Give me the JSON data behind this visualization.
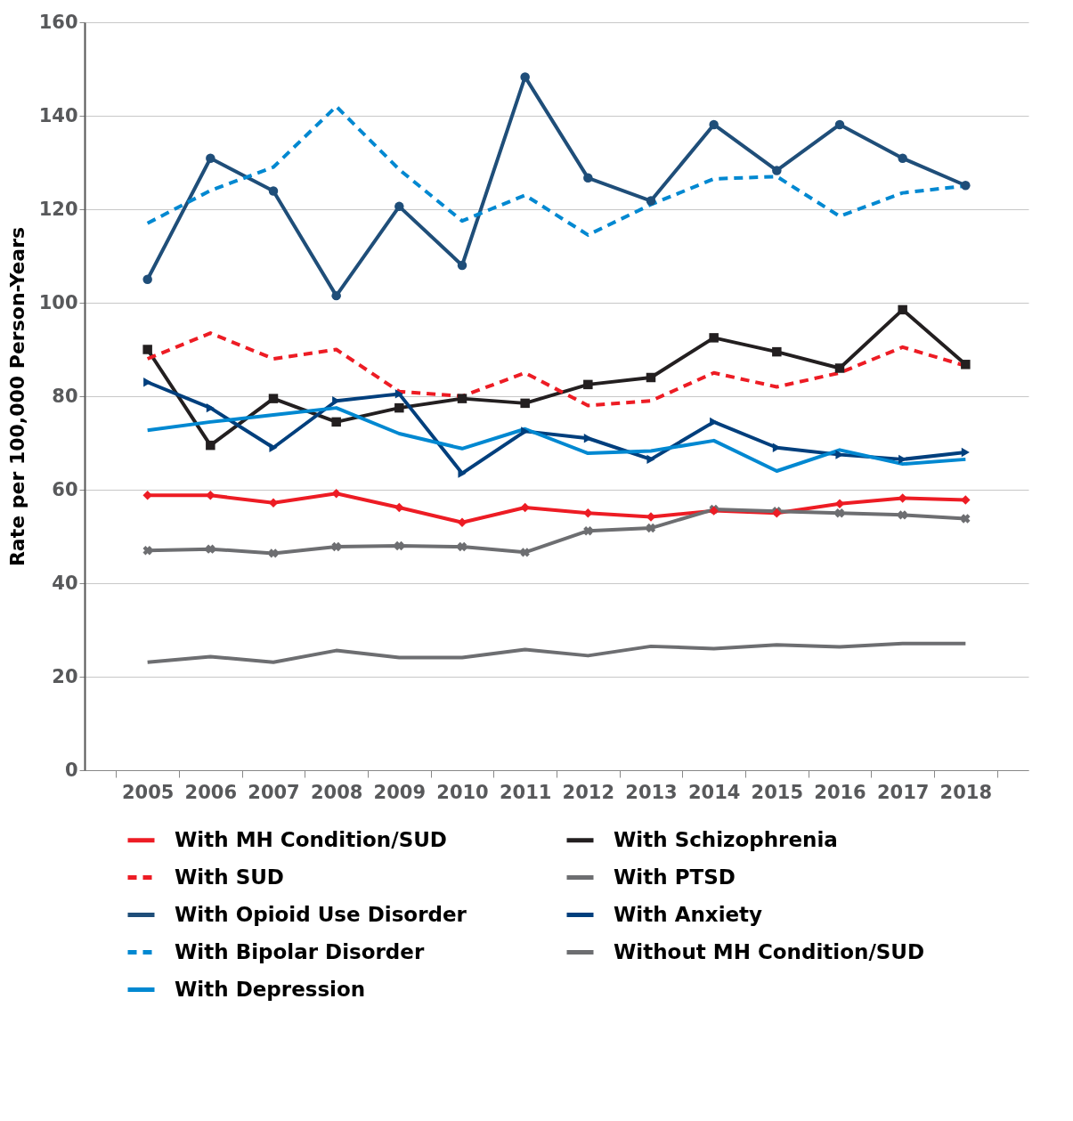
{
  "chart_data": {
    "type": "line",
    "ylabel": "Rate per 100,000 Person-Years",
    "categories": [
      "2005",
      "2006",
      "2007",
      "2008",
      "2009",
      "2010",
      "2011",
      "2012",
      "2013",
      "2014",
      "2015",
      "2016",
      "2017",
      "2018"
    ],
    "ylim": [
      0,
      160
    ],
    "yticks": [
      0,
      20,
      40,
      60,
      80,
      100,
      120,
      140,
      160
    ],
    "grid": "y",
    "legend": "bottom",
    "line_style": "solid",
    "series": [
      {
        "name": "With MH Condition/SUD",
        "color": "#ed1c24",
        "marker": "diamond",
        "values": [
          58.8,
          58.8,
          57.2,
          59.2,
          56.2,
          53,
          56.2,
          55,
          54.2,
          55.5,
          55,
          57,
          58.2,
          57.8
        ]
      },
      {
        "name": "With Schizophrenia",
        "color": "#231f20",
        "marker": "square",
        "values": [
          90,
          69.5,
          79.5,
          74.5,
          77.5,
          79.5,
          78.5,
          82.5,
          84,
          92.5,
          89.5,
          86,
          98.5,
          86.8
        ]
      },
      {
        "name": "With SUD",
        "color": "#ed1c24",
        "line_style": "dashed",
        "marker": "none",
        "values": [
          88,
          93.5,
          88,
          90,
          81,
          80,
          85,
          78,
          79,
          85,
          82,
          85,
          90.5,
          86.5
        ]
      },
      {
        "name": "With PTSD",
        "color": "#6d6e71",
        "marker": "cross",
        "values": [
          47,
          47.3,
          46.4,
          47.8,
          48,
          47.8,
          46.6,
          51.2,
          51.8,
          55.8,
          55.4,
          55,
          54.6,
          53.8
        ]
      },
      {
        "name": "With Opioid Use Disorder",
        "color": "#1f4e79",
        "marker": "circle",
        "values": [
          105,
          130.9,
          123.9,
          101.5,
          120.6,
          108,
          148.3,
          126.7,
          121.8,
          138.1,
          128.3,
          138.1,
          130.9,
          125.1
        ]
      },
      {
        "name": "With Anxiety",
        "color": "#003f7d",
        "marker": "triangle",
        "values": [
          83,
          77.5,
          69,
          79,
          80.5,
          63.5,
          72.5,
          71,
          66.5,
          74.5,
          69,
          67.5,
          66.5,
          68
        ]
      },
      {
        "name": "With Bipolar Disorder",
        "color": "#0088d1",
        "line_style": "dashed",
        "marker": "none",
        "values": [
          117,
          124,
          129,
          142,
          128.5,
          117.5,
          123,
          114.5,
          121,
          126.5,
          127,
          118.5,
          123.5,
          125
        ]
      },
      {
        "name": "Without MH Condition/SUD",
        "color": "#6d6e71",
        "marker": "none",
        "values": [
          23.1,
          24.3,
          23.1,
          25.6,
          24.1,
          24.1,
          25.8,
          24.5,
          26.5,
          26,
          26.8,
          26.4,
          27.1,
          27.1
        ]
      },
      {
        "name": "With Depression",
        "color": "#0088d1",
        "marker": "none",
        "values": [
          72.7,
          74.5,
          76,
          77.5,
          72,
          68.8,
          73,
          67.8,
          68.3,
          70.5,
          64,
          68.5,
          65.5,
          66.5
        ]
      }
    ]
  }
}
